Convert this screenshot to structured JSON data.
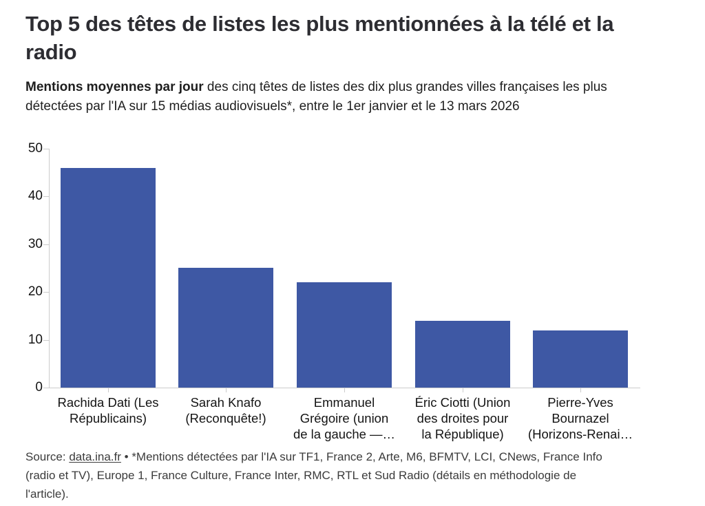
{
  "header": {
    "title": "Top 5 des têtes de listes les plus mentionnées à la télé et la radio",
    "subtitle_bold": "Mentions moyennes par jour",
    "subtitle_rest": " des cinq têtes de listes des dix plus grandes villes françaises les plus détectées par l'IA sur 15 médias audiovisuels*, entre le 1er janvier et le 13 mars 2026"
  },
  "chart_data": {
    "type": "bar",
    "title": "Top 5 des têtes de listes les plus mentionnées à la télé et la radio",
    "categories": [
      "Rachida Dati (Les Républicains)",
      "Sarah Knafo (Reconquête!)",
      "Emmanuel Grégoire (union de la gauche —…",
      "Éric Ciotti (Union des droites pour la République)",
      "Pierre-Yves Bournazel (Horizons-Renai…"
    ],
    "category_lines": [
      [
        "Rachida Dati (Les",
        "Républicains)"
      ],
      [
        "Sarah Knafo",
        "(Reconquête!)"
      ],
      [
        "Emmanuel",
        "Grégoire (union",
        "de la gauche —…"
      ],
      [
        "Éric Ciotti (Union",
        "des droites pour",
        "la République)"
      ],
      [
        "Pierre-Yves",
        "Bournazel",
        "(Horizons-Renai…"
      ]
    ],
    "values": [
      46,
      25,
      22,
      14,
      12
    ],
    "xlabel": "",
    "ylabel": "",
    "ylim": [
      0,
      50
    ],
    "yticks": [
      0,
      10,
      20,
      30,
      40,
      50
    ],
    "grid": false,
    "legend_position": "none",
    "bar_color": "#3e58a4",
    "axis_color": "#cbcbcb"
  },
  "footer": {
    "source_prefix": "Source: ",
    "source_link": "data.ina.fr",
    "source_suffix": " • *Mentions détectées par l'IA sur TF1, France 2, Arte, M6, BFMTV, LCI, CNews, France Info (radio et TV), Europe 1, France Culture, France Inter, RMC, RTL et Sud Radio (détails en méthodologie de l'article)."
  }
}
